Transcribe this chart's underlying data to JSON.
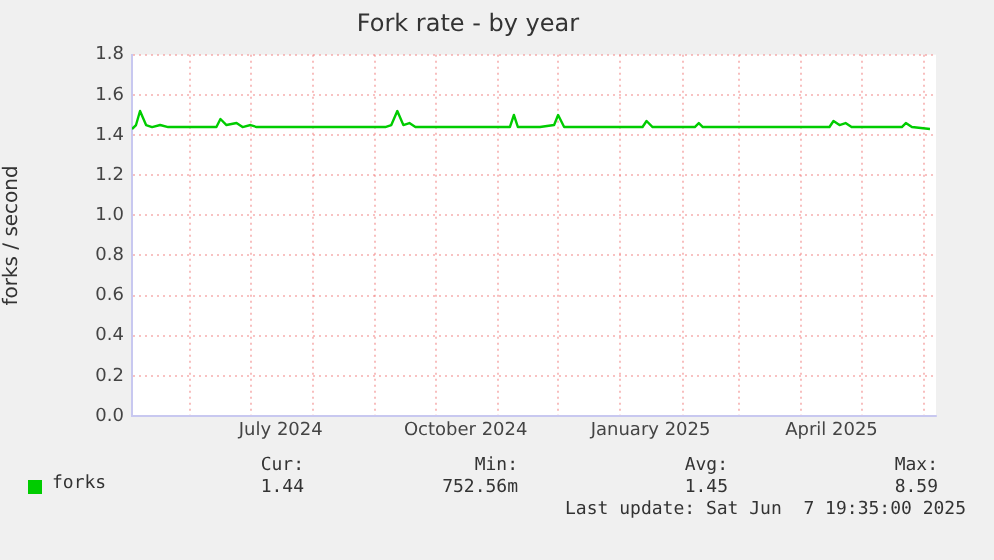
{
  "chart_data": {
    "type": "line",
    "title": "Fork rate - by year",
    "ylabel": "forks / second",
    "xlim": [
      "2024-05-03",
      "2025-06-07"
    ],
    "xticks": [
      {
        "value": "2024-06-01",
        "label": null
      },
      {
        "value": "2024-07-01",
        "label": null
      },
      {
        "value": "2024-07-16",
        "label": "July 2024"
      },
      {
        "value": "2024-08-01",
        "label": null
      },
      {
        "value": "2024-09-01",
        "label": null
      },
      {
        "value": "2024-10-01",
        "label": null
      },
      {
        "value": "2024-10-16",
        "label": "October 2024"
      },
      {
        "value": "2024-11-01",
        "label": null
      },
      {
        "value": "2024-12-01",
        "label": null
      },
      {
        "value": "2025-01-01",
        "label": null
      },
      {
        "value": "2025-01-16",
        "label": "January 2025"
      },
      {
        "value": "2025-02-01",
        "label": null
      },
      {
        "value": "2025-03-01",
        "label": null
      },
      {
        "value": "2025-04-01",
        "label": null
      },
      {
        "value": "2025-04-16",
        "label": "April 2025"
      },
      {
        "value": "2025-05-01",
        "label": null
      },
      {
        "value": "2025-06-01",
        "label": null
      }
    ],
    "ylim": [
      0,
      1.8
    ],
    "yticks": [
      {
        "value": 0,
        "label": "0.0"
      },
      0.2,
      0.4,
      0.6,
      0.8,
      {
        "value": 1,
        "label": "1.0"
      },
      1.2,
      1.4,
      1.6,
      1.8
    ],
    "grid": true,
    "legend": "bottom left",
    "marker": "none",
    "line_style": "solid",
    "x": [
      "2024-05-03",
      "2024-05-05",
      "2024-05-07",
      "2024-05-10",
      "2024-05-13",
      "2024-05-17",
      "2024-05-21",
      "2024-06-14",
      "2024-06-16",
      "2024-06-19",
      "2024-06-24",
      "2024-06-27",
      "2024-07-01",
      "2024-07-04",
      "2024-09-06",
      "2024-09-09",
      "2024-09-12",
      "2024-09-15",
      "2024-09-18",
      "2024-09-21",
      "2024-11-07",
      "2024-11-09",
      "2024-11-11",
      "2024-11-22",
      "2024-11-29",
      "2024-12-01",
      "2024-12-04",
      "2025-01-12",
      "2025-01-14",
      "2025-01-17",
      "2025-02-07",
      "2025-02-09",
      "2025-02-11",
      "2025-04-15",
      "2025-04-17",
      "2025-04-20",
      "2025-04-23",
      "2025-04-26",
      "2025-05-21",
      "2025-05-23",
      "2025-05-26",
      "2025-06-04"
    ],
    "series": [
      {
        "name": "forks",
        "color": "#00cc00",
        "values": [
          1.43,
          1.45,
          1.52,
          1.45,
          1.44,
          1.45,
          1.44,
          1.44,
          1.48,
          1.45,
          1.46,
          1.44,
          1.45,
          1.44,
          1.44,
          1.45,
          1.52,
          1.45,
          1.46,
          1.44,
          1.44,
          1.5,
          1.44,
          1.44,
          1.45,
          1.5,
          1.44,
          1.44,
          1.47,
          1.44,
          1.44,
          1.46,
          1.44,
          1.44,
          1.47,
          1.45,
          1.46,
          1.44,
          1.44,
          1.46,
          1.44,
          1.43
        ]
      }
    ],
    "annotations": [
      "Cur:",
      "1.44",
      "Min:",
      "752.56m",
      "Avg:",
      "1.45",
      "Max:",
      "8.59",
      "Last update: Sat Jun  7 19:35:00 2025"
    ]
  }
}
